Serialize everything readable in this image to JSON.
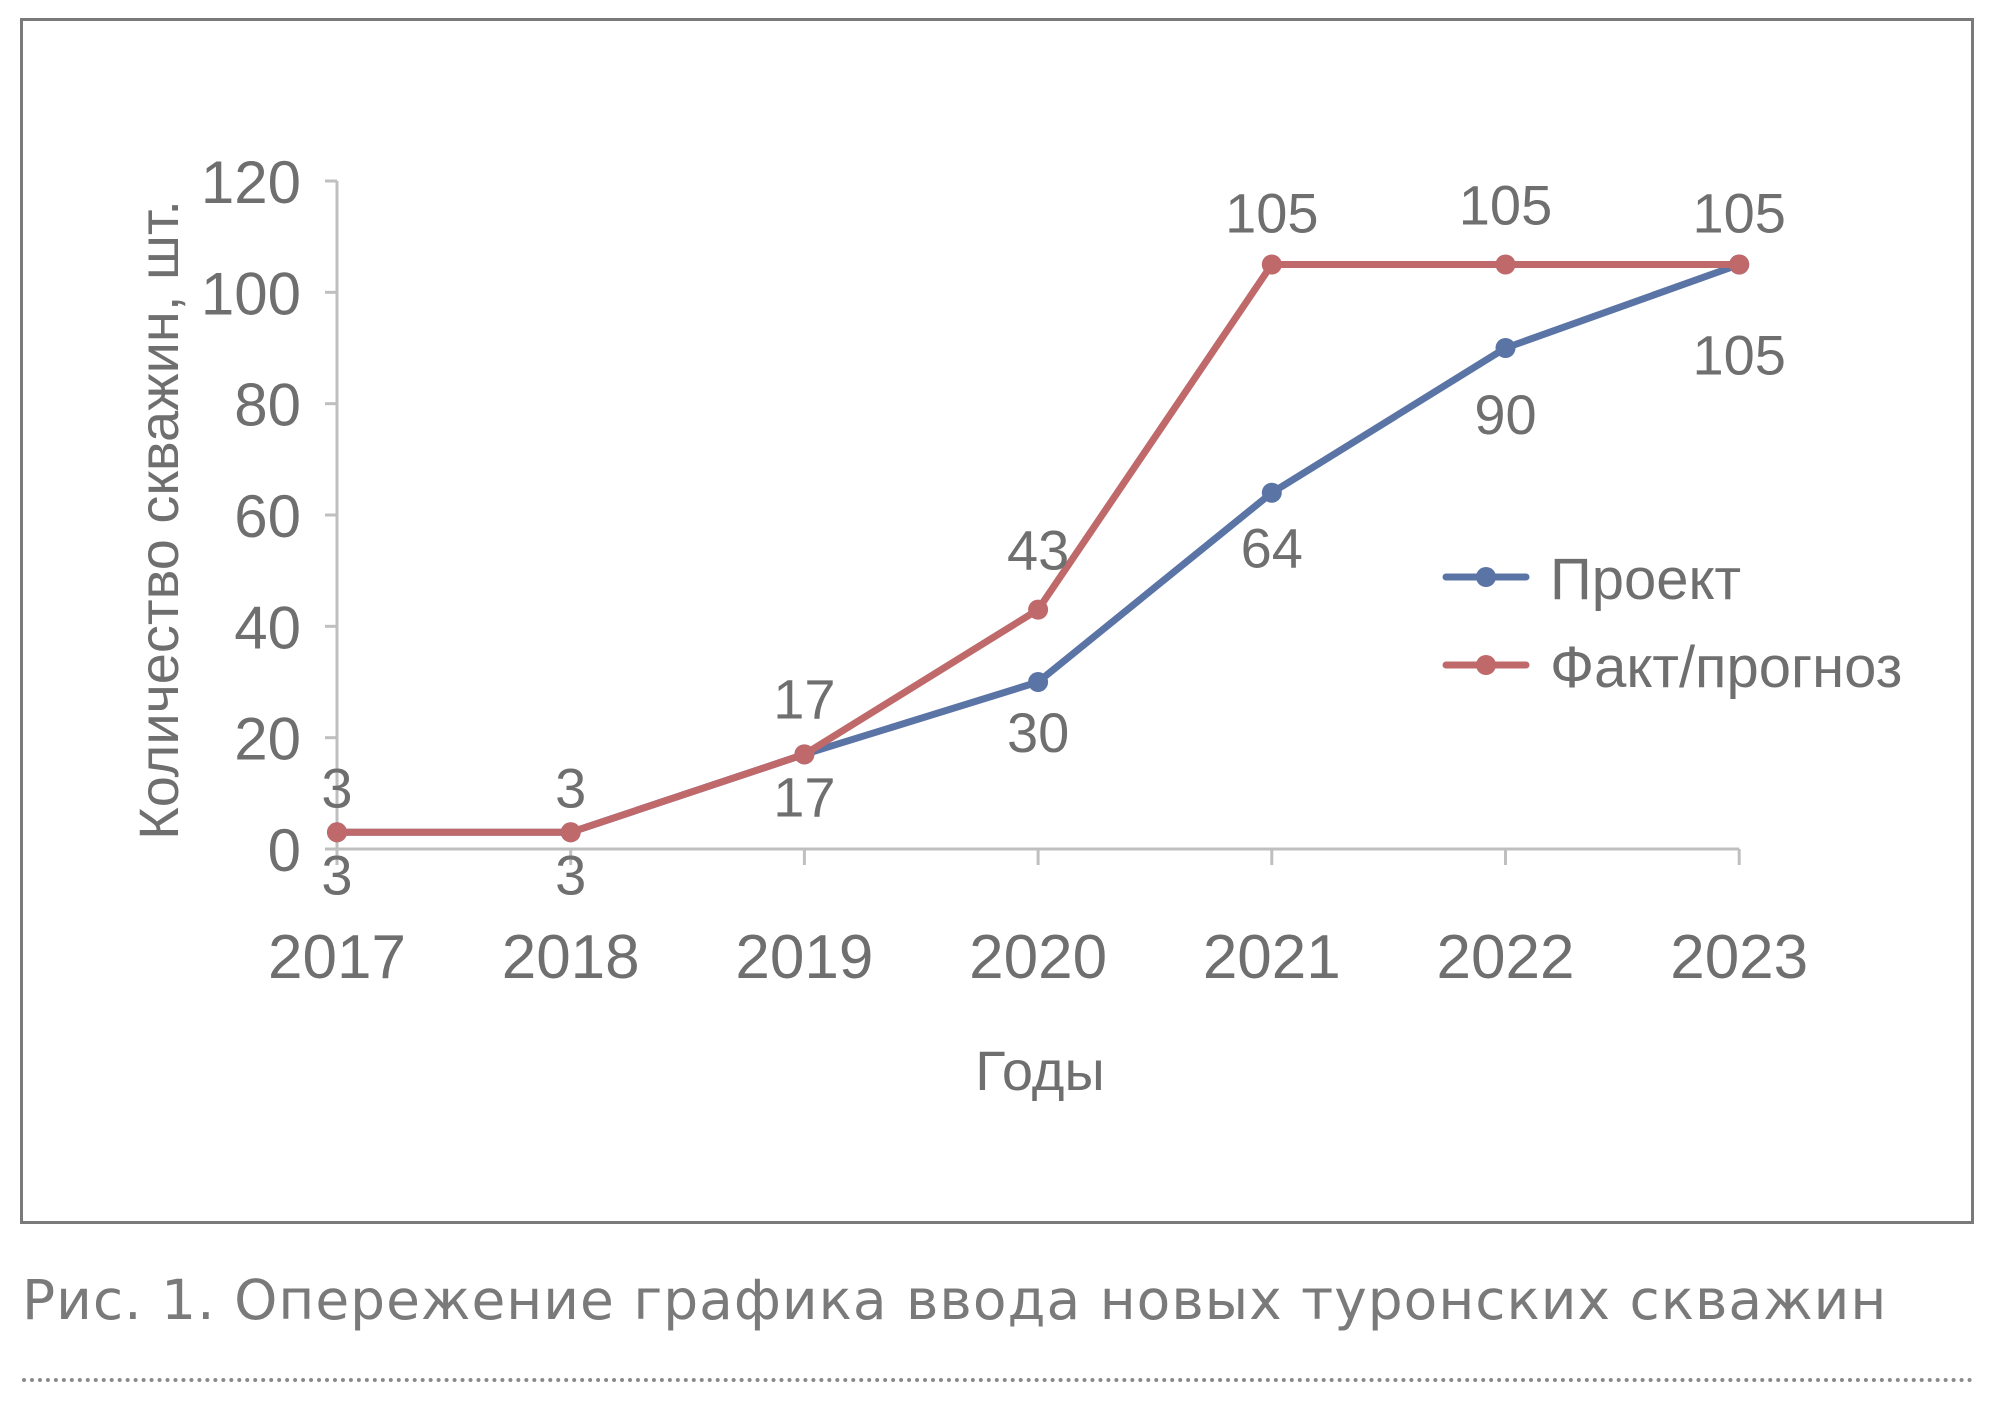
{
  "chart_data": {
    "type": "line",
    "x": [
      "2017",
      "2018",
      "2019",
      "2020",
      "2021",
      "2022",
      "2023"
    ],
    "series": [
      {
        "name": "Проект",
        "color": "#5b74a6",
        "values": [
          3,
          3,
          17,
          30,
          64,
          90,
          105
        ],
        "labels": [
          "3",
          "3",
          "17",
          "30",
          "64",
          "90",
          "105"
        ]
      },
      {
        "name": "Факт/прогноз",
        "color": "#c0696b",
        "values": [
          3,
          3,
          17,
          43,
          105,
          105,
          105
        ],
        "labels": [
          "3",
          "3",
          "17",
          "43",
          "105",
          "105",
          "105"
        ]
      }
    ],
    "xlabel": "Годы",
    "ylabel": "Количество скважин, шт.",
    "ylim": [
      0,
      120
    ],
    "yticks": [
      "0",
      "20",
      "40",
      "60",
      "80",
      "100",
      "120"
    ],
    "grid": false,
    "legend_position": "right"
  },
  "caption": "Рис. 1. Опережение графика ввода новых туронских скважин",
  "colors": {
    "axis": "#bfbfbf",
    "text": "#6f6f6f",
    "frame": "#7a7a7a"
  }
}
